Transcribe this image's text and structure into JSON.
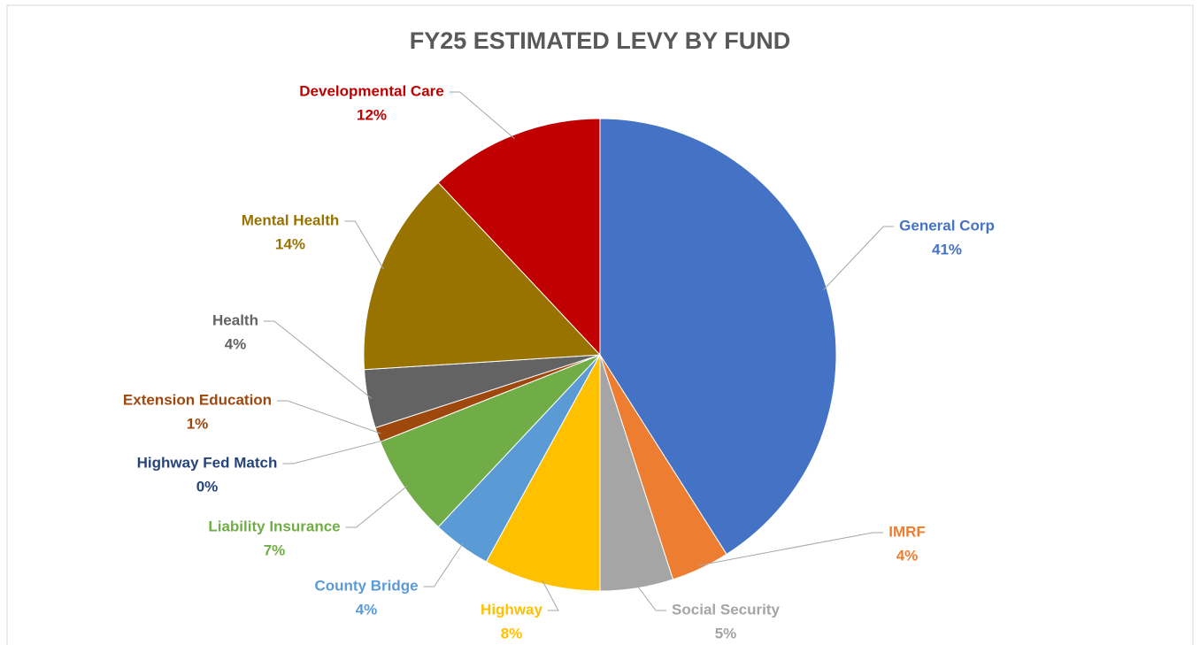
{
  "chart_data": {
    "type": "pie",
    "title": "FY25 ESTIMATED LEVY BY FUND",
    "categories": [
      "General Corp",
      "IMRF",
      "Social Security",
      "Highway",
      "County Bridge",
      "Liability Insurance",
      "Highway Fed Match",
      "Extension Education",
      "Health",
      "Mental Health",
      "Developmental Care"
    ],
    "values": [
      41,
      4,
      5,
      8,
      4,
      7,
      0,
      1,
      4,
      14,
      12
    ],
    "value_labels": [
      "41%",
      "4%",
      "5%",
      "8%",
      "4%",
      "7%",
      "0%",
      "1%",
      "4%",
      "14%",
      "12%"
    ],
    "colors": [
      "#4472c4",
      "#ed7d31",
      "#a5a5a5",
      "#ffc000",
      "#5b9bd5",
      "#70ad47",
      "#264478",
      "#9e480e",
      "#636363",
      "#997300",
      "#c00000"
    ]
  }
}
